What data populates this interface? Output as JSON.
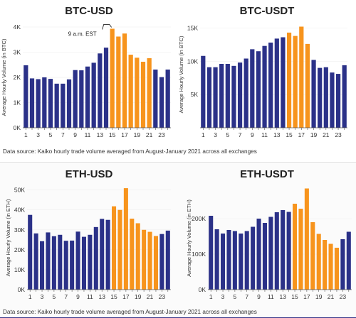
{
  "source_note": "Data source: Kaiko hourly trade volume averaged from August-January 2021 across all exchanges",
  "colors": {
    "dark": "#2b3188",
    "orange": "#f7941d"
  },
  "chart_data": [
    {
      "type": "bar",
      "title": "BTC-USD",
      "ylabel": "Average Hourly Volume (in BTC)",
      "ylim": [
        0,
        4000
      ],
      "yticks": [
        0,
        1000,
        2000,
        3000,
        4000
      ],
      "ytick_labels": [
        "0K",
        "1K",
        "2K",
        "3K",
        "4K"
      ],
      "categories": [
        1,
        2,
        3,
        4,
        5,
        6,
        7,
        8,
        9,
        10,
        11,
        12,
        13,
        14,
        15,
        16,
        17,
        18,
        19,
        20,
        21,
        22,
        23,
        24
      ],
      "xtick_labels": [
        "1",
        "3",
        "5",
        "7",
        "9",
        "11",
        "13",
        "15",
        "17",
        "19",
        "21",
        "23"
      ],
      "values": [
        2480,
        1960,
        1930,
        2000,
        1940,
        1750,
        1750,
        1920,
        2290,
        2280,
        2430,
        2580,
        2950,
        3180,
        3930,
        3620,
        3740,
        2900,
        2780,
        2620,
        2760,
        2310,
        2010,
        2310
      ],
      "highlight_start": 15,
      "highlight_end": 21,
      "annotation": "9 a.m. EST",
      "annotation_category": 15
    },
    {
      "type": "bar",
      "title": "BTC-USDT",
      "ylabel": "Average Hourly Volume (in BTC)",
      "ylim": [
        0,
        16000
      ],
      "yticks": [
        5000,
        10000,
        15000
      ],
      "ytick_labels": [
        "5K",
        "10K",
        "15K"
      ],
      "categories": [
        1,
        2,
        3,
        4,
        5,
        6,
        7,
        8,
        9,
        10,
        11,
        12,
        13,
        14,
        15,
        16,
        17,
        18,
        19,
        20,
        21,
        22,
        23,
        24
      ],
      "xtick_labels": [
        "1",
        "3",
        "5",
        "7",
        "9",
        "11",
        "13",
        "15",
        "17",
        "19",
        "21",
        "23"
      ],
      "values": [
        10800,
        9100,
        9100,
        9600,
        9600,
        9300,
        9800,
        10400,
        11800,
        11500,
        12300,
        12800,
        13400,
        13600,
        14300,
        13800,
        15200,
        12600,
        10200,
        9000,
        9100,
        8300,
        8100,
        9400
      ],
      "highlight_start": 15,
      "highlight_end": 18
    },
    {
      "type": "bar",
      "title": "ETH-USD",
      "ylabel": "Average Hourly Volume (in ETH)",
      "ylim": [
        0,
        52000
      ],
      "yticks": [
        0,
        10000,
        20000,
        30000,
        40000,
        50000
      ],
      "ytick_labels": [
        "0K",
        "10K",
        "20K",
        "30K",
        "40K",
        "50K"
      ],
      "categories": [
        1,
        2,
        3,
        4,
        5,
        6,
        7,
        8,
        9,
        10,
        11,
        12,
        13,
        14,
        15,
        16,
        17,
        18,
        19,
        20,
        21,
        22,
        23,
        24
      ],
      "xtick_labels": [
        "1",
        "3",
        "5",
        "7",
        "9",
        "11",
        "13",
        "15",
        "17",
        "19",
        "21",
        "23"
      ],
      "values": [
        37500,
        28200,
        24300,
        28700,
        26800,
        27500,
        24500,
        24600,
        29100,
        26500,
        27500,
        31400,
        35500,
        35000,
        41800,
        40000,
        50900,
        35600,
        33300,
        30000,
        29000,
        26900,
        27900,
        29600
      ],
      "highlight_start": 15,
      "highlight_end": 22
    },
    {
      "type": "bar",
      "title": "ETH-USDT",
      "ylabel": "Average Hourly Volume (in ETH)",
      "ylim": [
        0,
        290000
      ],
      "yticks": [
        0,
        100000,
        200000
      ],
      "ytick_labels": [
        "0K",
        "100K",
        "200K"
      ],
      "categories": [
        1,
        2,
        3,
        4,
        5,
        6,
        7,
        8,
        9,
        10,
        11,
        12,
        13,
        14,
        15,
        16,
        17,
        18,
        19,
        20,
        21,
        22,
        23,
        24
      ],
      "xtick_labels": [
        "1",
        "3",
        "5",
        "7",
        "9",
        "11",
        "13",
        "15",
        "17",
        "19",
        "21",
        "23"
      ],
      "values": [
        208000,
        170000,
        158000,
        168000,
        165000,
        158000,
        165000,
        177000,
        200000,
        188000,
        205000,
        218000,
        224000,
        219000,
        242000,
        228000,
        285000,
        190000,
        157000,
        140000,
        129000,
        118000,
        142000,
        163000
      ],
      "highlight_start": 15,
      "highlight_end": 22
    }
  ]
}
